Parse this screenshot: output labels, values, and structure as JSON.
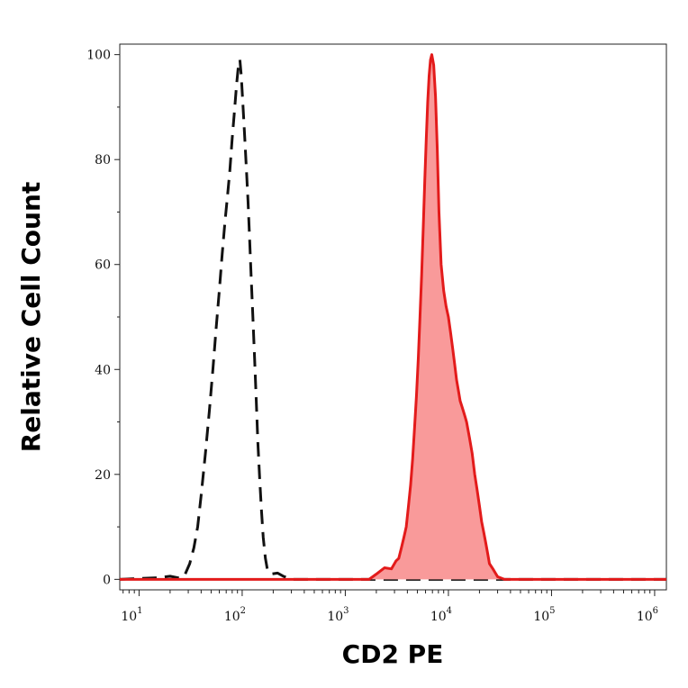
{
  "chart_data": {
    "type": "area",
    "title": "",
    "xlabel": "CD2 PE",
    "ylabel": "Relative Cell Count",
    "x_scale": "log",
    "xlim": [
      6.5,
      1300000
    ],
    "ylim": [
      -2,
      102
    ],
    "grid": false,
    "legend": "none",
    "y_ticks": [
      0,
      20,
      40,
      60,
      80,
      100
    ],
    "x_ticks": [
      {
        "value": 10,
        "base": "10",
        "exp": "1"
      },
      {
        "value": 100,
        "base": "10",
        "exp": "2"
      },
      {
        "value": 1000,
        "base": "10",
        "exp": "3"
      },
      {
        "value": 10000,
        "base": "10",
        "exp": "4"
      },
      {
        "value": 100000,
        "base": "10",
        "exp": "5"
      },
      {
        "value": 1000000,
        "base": "10",
        "exp": "6"
      }
    ],
    "series": [
      {
        "style": "dashed",
        "color": "#111111",
        "fill": "none",
        "points": [
          [
            6.5,
            0
          ],
          [
            15,
            0.3
          ],
          [
            20,
            0.6
          ],
          [
            25,
            0.2
          ],
          [
            28,
            1
          ],
          [
            31,
            3
          ],
          [
            34,
            6
          ],
          [
            37,
            10
          ],
          [
            40,
            16
          ],
          [
            44,
            24
          ],
          [
            48,
            32
          ],
          [
            52,
            40
          ],
          [
            56,
            48
          ],
          [
            60,
            55
          ],
          [
            64,
            62
          ],
          [
            68,
            68
          ],
          [
            72,
            73
          ],
          [
            76,
            78
          ],
          [
            80,
            84
          ],
          [
            84,
            89
          ],
          [
            88,
            94
          ],
          [
            92,
            98
          ],
          [
            95,
            99
          ],
          [
            98,
            96
          ],
          [
            102,
            90
          ],
          [
            106,
            84
          ],
          [
            110,
            78
          ],
          [
            114,
            72
          ],
          [
            118,
            65
          ],
          [
            122,
            58
          ],
          [
            127,
            50
          ],
          [
            132,
            42
          ],
          [
            137,
            34
          ],
          [
            142,
            26
          ],
          [
            148,
            19
          ],
          [
            154,
            13
          ],
          [
            160,
            8
          ],
          [
            168,
            4
          ],
          [
            175,
            2
          ],
          [
            190,
            1
          ],
          [
            220,
            1.2
          ],
          [
            250,
            0.6
          ],
          [
            300,
            0
          ],
          [
            1300000,
            0
          ]
        ]
      },
      {
        "style": "solid",
        "color": "#e31b1b",
        "fill": "#f99a9a",
        "points": [
          [
            6.5,
            0
          ],
          [
            1700,
            0
          ],
          [
            2000,
            1
          ],
          [
            2400,
            2.2
          ],
          [
            2800,
            2
          ],
          [
            3100,
            3.5
          ],
          [
            3300,
            4
          ],
          [
            3500,
            6
          ],
          [
            3700,
            8
          ],
          [
            3900,
            10
          ],
          [
            4100,
            14
          ],
          [
            4300,
            18
          ],
          [
            4500,
            23
          ],
          [
            4700,
            29
          ],
          [
            4900,
            35
          ],
          [
            5100,
            42
          ],
          [
            5300,
            50
          ],
          [
            5500,
            58
          ],
          [
            5700,
            67
          ],
          [
            5900,
            76
          ],
          [
            6100,
            84
          ],
          [
            6300,
            91
          ],
          [
            6500,
            96
          ],
          [
            6700,
            99
          ],
          [
            6900,
            100
          ],
          [
            7200,
            98
          ],
          [
            7500,
            92
          ],
          [
            7800,
            82
          ],
          [
            8100,
            70
          ],
          [
            8500,
            60
          ],
          [
            9000,
            55
          ],
          [
            9500,
            52
          ],
          [
            10000,
            50
          ],
          [
            10500,
            47
          ],
          [
            11000,
            44
          ],
          [
            11500,
            41
          ],
          [
            12000,
            38
          ],
          [
            12500,
            36
          ],
          [
            13000,
            34
          ],
          [
            13500,
            33
          ],
          [
            14000,
            32
          ],
          [
            14500,
            31
          ],
          [
            15000,
            30
          ],
          [
            16000,
            27
          ],
          [
            17000,
            24
          ],
          [
            18000,
            20
          ],
          [
            19000,
            17
          ],
          [
            20000,
            14
          ],
          [
            21000,
            11
          ],
          [
            22000,
            9
          ],
          [
            23000,
            7
          ],
          [
            24000,
            5
          ],
          [
            25000,
            3
          ],
          [
            27000,
            2
          ],
          [
            30000,
            0.5
          ],
          [
            35000,
            0
          ],
          [
            1300000,
            0
          ]
        ]
      }
    ]
  }
}
